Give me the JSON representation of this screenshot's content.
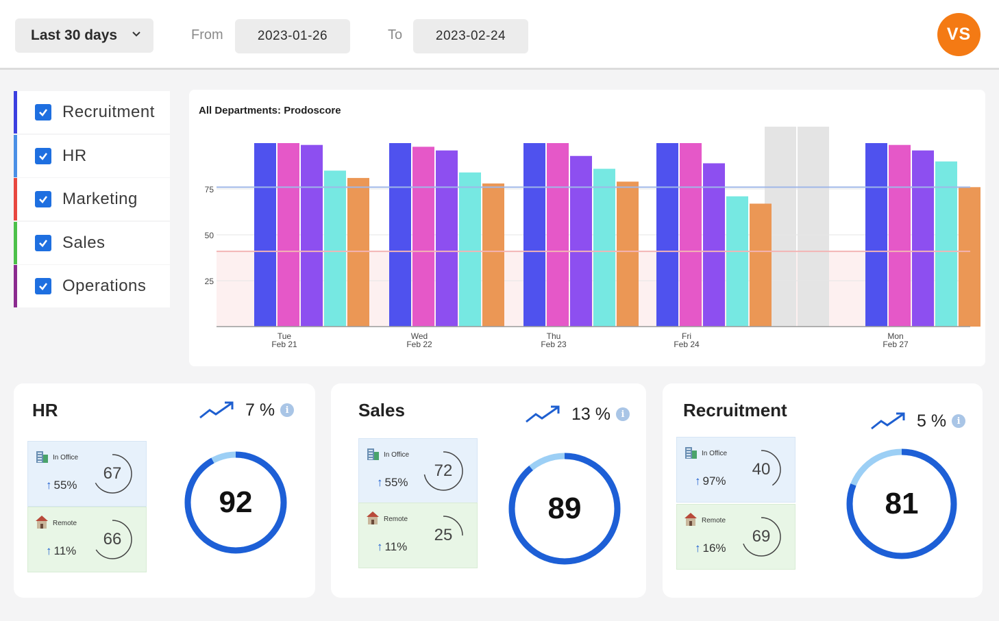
{
  "header": {
    "range_label": "Last 30 days",
    "from_label": "From",
    "from_value": "2023-01-26",
    "to_label": "To",
    "to_value": "2023-02-24",
    "avatar_initials": "VS"
  },
  "filters": [
    {
      "label": "Recruitment",
      "color": "#3b3fe0",
      "checked": true
    },
    {
      "label": "HR",
      "color": "#4a8fe6",
      "checked": true
    },
    {
      "label": "Marketing",
      "color": "#e8473f",
      "checked": true
    },
    {
      "label": "Sales",
      "color": "#4cc04a",
      "checked": true
    },
    {
      "label": "Operations",
      "color": "#8b2b8f",
      "checked": true
    }
  ],
  "chart_data": {
    "type": "bar",
    "title": "All Departments: Prodoscore",
    "categories": [
      [
        "Tue",
        "Feb 21"
      ],
      [
        "Wed",
        "Feb 22"
      ],
      [
        "Thu",
        "Feb 23"
      ],
      [
        "Fri",
        "Feb 24"
      ],
      [
        "",
        ""
      ],
      [
        "Mon",
        "Feb 27"
      ]
    ],
    "series": [
      {
        "color": "#4f52ee",
        "values": [
          100,
          100,
          100,
          100,
          null,
          100
        ]
      },
      {
        "color": "#e558c8",
        "values": [
          100,
          98,
          100,
          100,
          null,
          99
        ]
      },
      {
        "color": "#8d4ff0",
        "values": [
          99,
          96,
          93,
          89,
          null,
          96
        ]
      },
      {
        "color": "#76e8e2",
        "values": [
          85,
          84,
          86,
          71,
          null,
          90
        ]
      },
      {
        "color": "#eb9755",
        "values": [
          81,
          78,
          79,
          67,
          null,
          76
        ]
      }
    ],
    "yticks": [
      25,
      50,
      75
    ],
    "ylim": [
      0,
      100
    ],
    "reference_lines": [
      {
        "value": 76,
        "color": "#9fb7e8"
      },
      {
        "value": 41,
        "color": "#f3b4b4"
      }
    ],
    "shaded_below": 41,
    "empty_category_shaded": 4,
    "grid": true
  },
  "departments": [
    {
      "name": "HR",
      "trend_pct": "7 %",
      "info": "i",
      "office": {
        "label": "In Office",
        "pct": "55%",
        "score": "67",
        "fraction": 0.67
      },
      "remote": {
        "label": "Remote",
        "pct": "11%",
        "score": "66",
        "fraction": 0.66
      },
      "score": "92",
      "fraction": 0.92
    },
    {
      "name": "Sales",
      "trend_pct": "13 %",
      "info": "i",
      "office": {
        "label": "In Office",
        "pct": "55%",
        "score": "72",
        "fraction": 0.72
      },
      "remote": {
        "label": "Remote",
        "pct": "11%",
        "score": "25",
        "fraction": 0.25
      },
      "score": "89",
      "fraction": 0.89
    },
    {
      "name": "Recruitment",
      "trend_pct": "5 %",
      "info": "i",
      "office": {
        "label": "In Office",
        "pct": "97%",
        "score": "40",
        "fraction": 0.4
      },
      "remote": {
        "label": "Remote",
        "pct": "16%",
        "score": "69",
        "fraction": 0.69
      },
      "score": "81",
      "fraction": 0.81
    }
  ],
  "trend_arrow": "↑"
}
